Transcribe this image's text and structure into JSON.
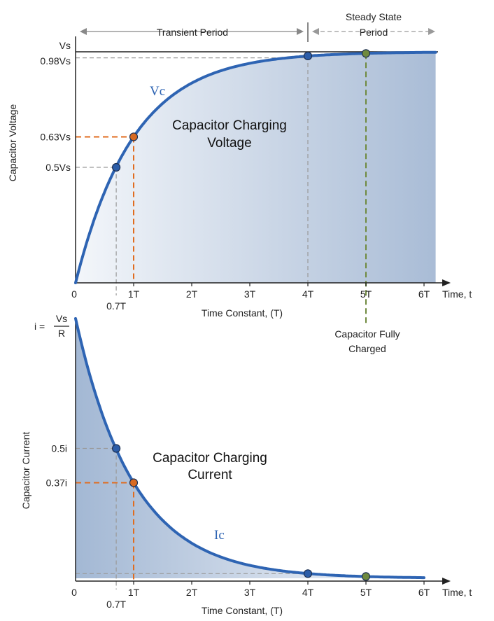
{
  "colors": {
    "curve": "#2e64b3",
    "fill_dark": "#a9bcd6",
    "fill_light": "#f1f4f9",
    "orange": "#e06c1f",
    "olive_line": "#6f8a3e",
    "olive_text": "#9a9a3c",
    "grey_dashed": "#9a9a9a",
    "axis": "#222222"
  },
  "chart_data": [
    {
      "type": "line",
      "title": "Capacitor Charging Voltage",
      "title_lines": [
        "Capacitor Charging",
        "Voltage"
      ],
      "curve_label": "Vc",
      "ylabel": "Capacitor Voltage",
      "xlabel": "Time Constant, (T)",
      "x_axis_end_label": "Time, t",
      "xlim": [
        0,
        6.2
      ],
      "ylim": [
        0,
        1.0
      ],
      "x_ticks": [
        {
          "value": 0,
          "label": "0",
          "color": "default"
        },
        {
          "value": 1,
          "label": "1T",
          "color": "orange"
        },
        {
          "value": 2,
          "label": "2T",
          "color": "default"
        },
        {
          "value": 3,
          "label": "3T",
          "color": "default"
        },
        {
          "value": 4,
          "label": "4T",
          "color": "default"
        },
        {
          "value": 5,
          "label": "5T",
          "color": "olive"
        },
        {
          "value": 6,
          "label": "6T",
          "color": "default"
        }
      ],
      "extra_x_label": {
        "value": 0.7,
        "label": "0.7T"
      },
      "y_ticks": [
        {
          "value": 1.0,
          "label": "Vs",
          "color": "default"
        },
        {
          "value": 0.98,
          "label": "0.98Vs",
          "color": "default"
        },
        {
          "value": 0.632,
          "label": "0.63Vs",
          "color": "orange"
        },
        {
          "value": 0.5,
          "label": "0.5Vs",
          "color": "default"
        }
      ],
      "series": [
        {
          "function": "1 - exp(-t)",
          "x": [
            0,
            0.5,
            1,
            1.5,
            2,
            2.5,
            3,
            3.5,
            4,
            4.5,
            5,
            5.5,
            6,
            6.2
          ],
          "values": [
            0,
            0.393,
            0.632,
            0.777,
            0.865,
            0.918,
            0.95,
            0.97,
            0.982,
            0.989,
            0.993,
            0.996,
            0.998,
            0.998
          ]
        }
      ],
      "markers": [
        {
          "x": 0.7,
          "y": 0.5,
          "color": "blue"
        },
        {
          "x": 1,
          "y": 0.632,
          "color": "orange"
        },
        {
          "x": 4,
          "y": 0.982,
          "color": "blue"
        },
        {
          "x": 5,
          "y": 0.993,
          "color": "olive"
        }
      ],
      "periods": [
        {
          "label": "Transient Period",
          "from": 0,
          "to": 4
        },
        {
          "label": "Steady State Period",
          "label_lines": [
            "Steady State",
            "Period"
          ],
          "from": 4,
          "to": 6
        }
      ],
      "annotation": {
        "lines": [
          "Capacitor Fully",
          "Charged"
        ],
        "x": 5
      }
    },
    {
      "type": "line",
      "title": "Capacitor Charging Current",
      "title_lines": [
        "Capacitor Charging",
        "Current"
      ],
      "curve_label": "Ic",
      "ylabel": "Capacitor Current",
      "xlabel": "Time Constant, (T)",
      "x_axis_end_label": "Time, t",
      "xlim": [
        0,
        6.2
      ],
      "ylim": [
        0,
        1.0
      ],
      "x_ticks": [
        {
          "value": 0,
          "label": "0",
          "color": "default"
        },
        {
          "value": 1,
          "label": "1T",
          "color": "orange"
        },
        {
          "value": 2,
          "label": "2T",
          "color": "default"
        },
        {
          "value": 3,
          "label": "3T",
          "color": "default"
        },
        {
          "value": 4,
          "label": "4T",
          "color": "default"
        },
        {
          "value": 5,
          "label": "5T",
          "color": "olive"
        },
        {
          "value": 6,
          "label": "6T",
          "color": "default"
        }
      ],
      "extra_x_label": {
        "value": 0.7,
        "label": "0.7T"
      },
      "y_top_label": {
        "prefix": "i =",
        "numerator": "Vs",
        "denominator": "R"
      },
      "y_ticks": [
        {
          "value": 0.5,
          "label": "0.5i",
          "color": "default"
        },
        {
          "value": 0.368,
          "label": "0.37i",
          "color": "orange"
        }
      ],
      "series": [
        {
          "function": "exp(-t)",
          "x": [
            0,
            0.5,
            1,
            1.5,
            2,
            2.5,
            3,
            3.5,
            4,
            4.5,
            5,
            5.5,
            6
          ],
          "values": [
            1,
            0.607,
            0.368,
            0.223,
            0.135,
            0.082,
            0.05,
            0.03,
            0.018,
            0.011,
            0.007,
            0.004,
            0.002
          ]
        }
      ],
      "markers": [
        {
          "x": 0.7,
          "y": 0.5,
          "color": "blue"
        },
        {
          "x": 1,
          "y": 0.368,
          "color": "orange"
        },
        {
          "x": 4,
          "y": 0.018,
          "color": "blue"
        },
        {
          "x": 5,
          "y": 0.007,
          "color": "olive"
        }
      ]
    }
  ]
}
